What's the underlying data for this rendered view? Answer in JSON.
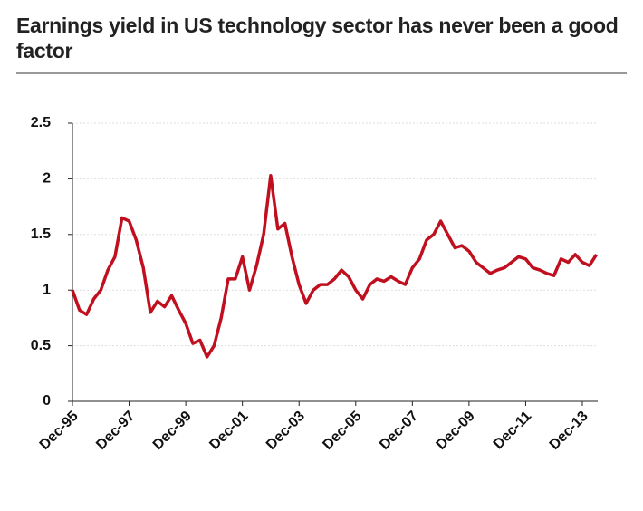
{
  "chart_data": {
    "type": "line",
    "title": "Earnings yield in US technology sector has never been a good factor",
    "categories": [
      "Dec-95",
      null,
      null,
      null,
      null,
      null,
      null,
      null,
      "Dec-97",
      null,
      null,
      null,
      null,
      null,
      null,
      null,
      "Dec-99",
      null,
      null,
      null,
      null,
      null,
      null,
      null,
      "Dec-01",
      null,
      null,
      null,
      null,
      null,
      null,
      null,
      "Dec-03",
      null,
      null,
      null,
      null,
      null,
      null,
      null,
      "Dec-05",
      null,
      null,
      null,
      null,
      null,
      null,
      null,
      "Dec-07",
      null,
      null,
      null,
      null,
      null,
      null,
      null,
      "Dec-09",
      null,
      null,
      null,
      null,
      null,
      null,
      null,
      "Dec-11",
      null,
      null,
      null,
      null,
      null,
      null,
      null,
      "Dec-13",
      null,
      null
    ],
    "series": [
      {
        "color": "#c0101f",
        "values": [
          1.0,
          0.82,
          0.78,
          0.92,
          1.0,
          1.18,
          1.3,
          1.65,
          1.62,
          1.45,
          1.2,
          0.8,
          0.9,
          0.85,
          0.95,
          0.82,
          0.7,
          0.52,
          0.55,
          0.4,
          0.5,
          0.75,
          1.1,
          1.1,
          1.3,
          1.0,
          1.22,
          1.5,
          2.03,
          1.55,
          1.6,
          1.3,
          1.05,
          0.88,
          1.0,
          1.05,
          1.05,
          1.1,
          1.18,
          1.12,
          1.0,
          0.92,
          1.05,
          1.1,
          1.08,
          1.12,
          1.08,
          1.05,
          1.2,
          1.28,
          1.45,
          1.5,
          1.62,
          1.5,
          1.38,
          1.4,
          1.35,
          1.25,
          1.2,
          1.15,
          1.18,
          1.2,
          1.25,
          1.3,
          1.28,
          1.2,
          1.18,
          1.15,
          1.13,
          1.28,
          1.25,
          1.32,
          1.25,
          1.22,
          1.32
        ]
      }
    ],
    "ylim": [
      0,
      2.5
    ],
    "yticks": [
      0,
      0.5,
      1,
      1.5,
      2,
      2.5
    ],
    "grid": true
  }
}
